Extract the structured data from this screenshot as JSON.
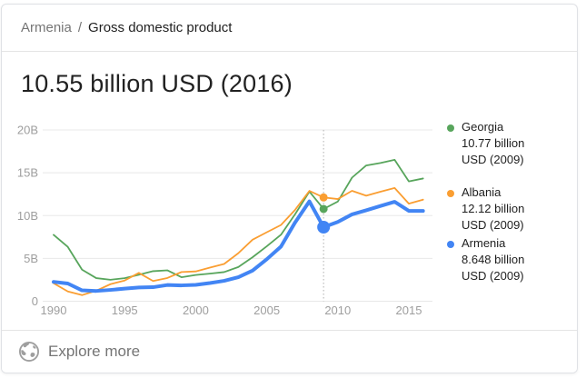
{
  "card": {
    "breadcrumb": {
      "location": "Armenia",
      "separator": "/",
      "metric": "Gross domestic product"
    },
    "headline": "10.55 billion USD (2016)",
    "footer": {
      "label": "Explore more"
    }
  },
  "legend": [
    {
      "name": "Georgia",
      "value": "10.77 billion",
      "period": "USD (2009)",
      "color": "#58a55c"
    },
    {
      "name": "Albania",
      "value": "12.12 billion",
      "period": "USD (2009)",
      "color": "#fa9e32"
    },
    {
      "name": "Armenia",
      "value": "8.648 billion",
      "period": "USD (2009)",
      "color": "#4285f4"
    }
  ],
  "chart_data": {
    "type": "line",
    "title": "Gross domestic product, billions of USD, 1990-2016",
    "x": [
      1990,
      1991,
      1992,
      1993,
      1994,
      1995,
      1996,
      1997,
      1998,
      1999,
      2000,
      2001,
      2002,
      2003,
      2004,
      2005,
      2006,
      2007,
      2008,
      2009,
      2010,
      2011,
      2012,
      2013,
      2014,
      2015,
      2016
    ],
    "series": [
      {
        "name": "Georgia",
        "color": "#58a55c",
        "width": 1.8,
        "values": [
          7.75,
          6.34,
          3.69,
          2.7,
          2.51,
          2.69,
          3.09,
          3.51,
          3.61,
          2.8,
          3.06,
          3.22,
          3.4,
          3.99,
          5.13,
          6.41,
          7.76,
          10.17,
          12.8,
          10.77,
          11.64,
          14.43,
          15.85,
          16.14,
          16.51,
          13.99,
          14.33
        ]
      },
      {
        "name": "Albania",
        "color": "#fa9e32",
        "width": 1.8,
        "values": [
          2.1,
          1.14,
          0.71,
          1.23,
          1.99,
          2.42,
          3.31,
          2.36,
          2.71,
          3.41,
          3.48,
          3.92,
          4.35,
          5.61,
          7.18,
          8.05,
          8.9,
          10.68,
          12.88,
          12.12,
          11.93,
          12.89,
          12.32,
          12.78,
          13.22,
          11.39,
          11.86
        ]
      },
      {
        "name": "Armenia",
        "color": "#4285f4",
        "width": 4,
        "values": [
          2.26,
          2.07,
          1.27,
          1.2,
          1.32,
          1.47,
          1.6,
          1.64,
          1.89,
          1.85,
          1.91,
          2.12,
          2.38,
          2.81,
          3.58,
          4.9,
          6.38,
          9.21,
          11.66,
          8.648,
          9.26,
          10.14,
          10.62,
          11.12,
          11.61,
          10.55,
          10.55
        ]
      }
    ],
    "ylim": [
      0,
      20
    ],
    "ygrid": [
      0,
      5,
      10,
      15,
      20
    ],
    "ytick_labels": [
      "0",
      "5B",
      "10B",
      "15B",
      "20B"
    ],
    "xticks": [
      1990,
      1995,
      2000,
      2005,
      2010,
      2015
    ],
    "grid_on": true,
    "grid_color": "#e8e8e8",
    "tick_color": "#9e9e9e",
    "highlight_year": 2009,
    "highlight_line_color": "#bdbdbd",
    "highlight_points": [
      {
        "series": "Albania",
        "value": 12.12,
        "color": "#fa9e32",
        "r": 4.5
      },
      {
        "series": "Georgia",
        "value": 10.77,
        "color": "#58a55c",
        "r": 4.5
      },
      {
        "series": "Armenia",
        "value": 8.648,
        "color": "#4285f4",
        "r": 7
      }
    ],
    "legend_position": "right"
  }
}
